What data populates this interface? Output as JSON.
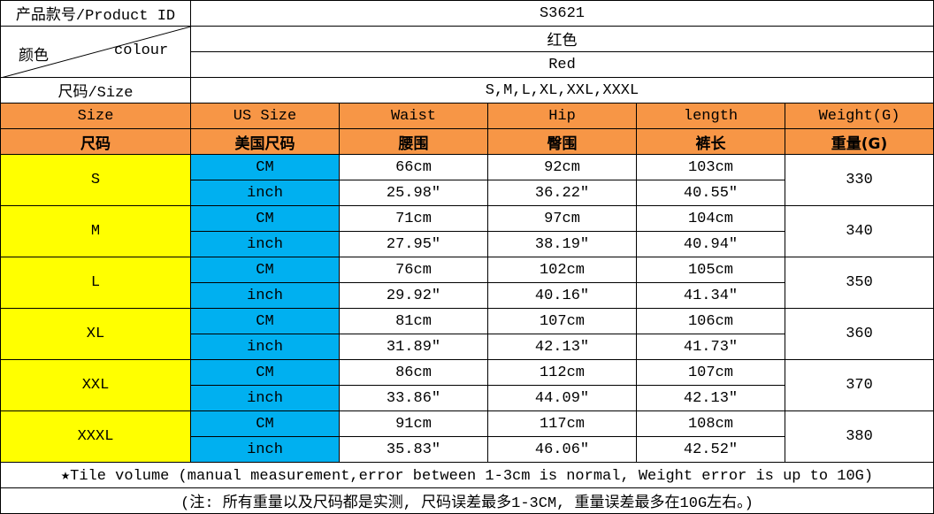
{
  "header": {
    "product_id_label": "产品款号/Product ID",
    "product_id": "S3621",
    "colour_label_cn": "颜色",
    "colour_label_en": "colour",
    "colour_cn": "红色",
    "colour_en": "Red",
    "size_label": "尺码/Size",
    "sizes": "S,M,L,XL,XXL,XXXL"
  },
  "table": {
    "columns_en": [
      "Size",
      "US Size",
      "Waist",
      "Hip",
      "length",
      "Weight(G)"
    ],
    "columns_cn": [
      "尺码",
      "美国尺码",
      "腰围",
      "臀围",
      "裤长",
      "重量(G)"
    ],
    "rows": [
      {
        "size": "S",
        "cm": [
          "CM",
          "66cm",
          "92cm",
          "103cm"
        ],
        "inch": [
          "inch",
          "25.98″",
          "36.22″",
          "40.55″"
        ],
        "weight": "330"
      },
      {
        "size": "M",
        "cm": [
          "CM",
          "71cm",
          "97cm",
          "104cm"
        ],
        "inch": [
          "inch",
          "27.95″",
          "38.19″",
          "40.94″"
        ],
        "weight": "340"
      },
      {
        "size": "L",
        "cm": [
          "CM",
          "76cm",
          "102cm",
          "105cm"
        ],
        "inch": [
          "inch",
          "29.92″",
          "40.16″",
          "41.34″"
        ],
        "weight": "350"
      },
      {
        "size": "XL",
        "cm": [
          "CM",
          "81cm",
          "107cm",
          "106cm"
        ],
        "inch": [
          "inch",
          "31.89″",
          "42.13″",
          "41.73″"
        ],
        "weight": "360"
      },
      {
        "size": "XXL",
        "cm": [
          "CM",
          "86cm",
          "112cm",
          "107cm"
        ],
        "inch": [
          "inch",
          "33.86″",
          "44.09″",
          "42.13″"
        ],
        "weight": "370"
      },
      {
        "size": "XXXL",
        "cm": [
          "CM",
          "91cm",
          "117cm",
          "108cm"
        ],
        "inch": [
          "inch",
          "35.83″",
          "46.06″",
          "42.52″"
        ],
        "weight": "380"
      }
    ]
  },
  "notes": [
    "★Tile volume (manual measurement,error between 1-3cm is normal, Weight error is up to 10G)",
    "(注: 所有重量以及尺码都是实测, 尺码误差最多1-3CM, 重量误差最多在10G左右。)"
  ]
}
